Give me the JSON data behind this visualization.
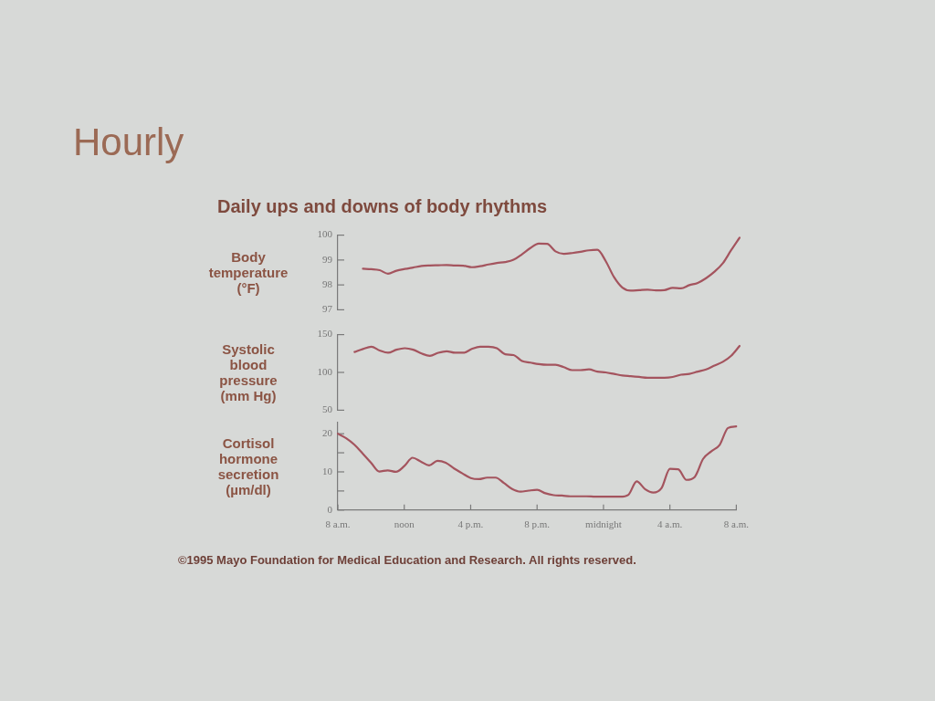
{
  "chart_data": [
    {
      "type": "line",
      "title": "Hourly",
      "subtitle": "Daily ups and downs of body rhythms",
      "ylabel": "Body temperature (°F)",
      "categories": [
        null,
        null,
        null,
        null,
        null,
        null,
        null,
        null,
        null,
        null,
        null,
        null,
        null,
        null,
        null,
        null,
        null,
        null,
        null,
        null,
        null,
        null,
        null,
        null,
        null,
        null,
        null,
        null,
        null,
        null,
        null,
        null,
        null,
        null,
        null,
        null,
        null,
        null,
        null,
        null,
        null,
        null,
        null,
        null,
        null,
        null,
        null,
        null,
        null
      ],
      "ylim": [
        97,
        100
      ],
      "yticks": [
        97,
        98,
        99,
        100
      ],
      "tick_labels": "y",
      "color": "#a4545e",
      "values": [
        null,
        null,
        null,
        98.65,
        98.63,
        98.59,
        98.45,
        98.57,
        98.64,
        98.7,
        98.76,
        98.78,
        98.79,
        98.8,
        98.78,
        98.77,
        98.71,
        98.75,
        98.82,
        98.88,
        98.92,
        99.01,
        99.23,
        99.48,
        99.66,
        99.65,
        99.35,
        99.25,
        99.28,
        99.33,
        99.39,
        99.41,
        98.96,
        98.31,
        97.89,
        97.77,
        97.79,
        97.81,
        97.78,
        97.79,
        97.88,
        97.86,
        97.99,
        98.08,
        98.27,
        98.53,
        98.87,
        99.4,
        99.9
      ]
    },
    {
      "type": "line",
      "ylabel": "Systolic blood pressure (mm Hg)",
      "categories": [
        null,
        null,
        null,
        null,
        null,
        null,
        null,
        null,
        null,
        null,
        null,
        null,
        null,
        null,
        null,
        null,
        null,
        null,
        null,
        null,
        null,
        null,
        null,
        null,
        null,
        null,
        null,
        null,
        null,
        null,
        null,
        null,
        null,
        null,
        null,
        null,
        null,
        null,
        null,
        null,
        null,
        null,
        null,
        null,
        null,
        null,
        null,
        null,
        null
      ],
      "ylim": [
        50,
        150
      ],
      "yticks": [
        50,
        100,
        150
      ],
      "tick_labels": "y",
      "color": "#a4545e",
      "values": [
        null,
        null,
        127,
        131,
        134,
        129,
        126,
        130,
        132,
        130,
        125,
        122,
        126,
        128,
        126,
        126,
        131,
        134,
        134,
        132,
        124,
        123,
        115,
        113,
        111,
        110,
        110,
        107,
        103,
        103,
        104,
        101,
        100,
        98,
        96,
        95,
        94,
        93,
        93,
        93,
        94,
        97,
        98,
        101,
        104,
        109,
        114,
        122,
        135
      ]
    },
    {
      "type": "line",
      "ylabel": "Cortisol hormone secretion (µm/dl)",
      "categories": [
        "8 a.m.",
        null,
        null,
        null,
        null,
        null,
        null,
        null,
        "noon",
        null,
        null,
        null,
        null,
        null,
        null,
        null,
        "4 p.m.",
        null,
        null,
        null,
        null,
        null,
        null,
        null,
        "8 p.m.",
        null,
        null,
        null,
        null,
        null,
        null,
        null,
        "midnight",
        null,
        null,
        null,
        null,
        null,
        null,
        null,
        "4 a.m.",
        null,
        null,
        null,
        null,
        null,
        null,
        null,
        "8 a.m."
      ],
      "ylim": [
        0,
        23
      ],
      "yticks": [
        0,
        {
          "value": 5,
          "label": null
        },
        10,
        {
          "value": 15,
          "label": null
        },
        20
      ],
      "color": "#a4545e",
      "values": [
        20,
        18.8,
        17.1,
        14.8,
        12.4,
        10.1,
        10.4,
        10.0,
        11.5,
        13.7,
        12.7,
        11.7,
        12.9,
        12.4,
        10.9,
        9.6,
        8.4,
        8.1,
        8.5,
        8.5,
        7.1,
        5.5,
        4.8,
        5.1,
        5.3,
        4.4,
        3.9,
        3.8,
        3.6,
        3.6,
        3.6,
        3.5,
        3.5,
        3.5,
        3.5,
        4.0,
        7.5,
        5.5,
        4.6,
        5.8,
        10.8,
        10.7,
        7.9,
        8.7,
        13.4,
        15.4,
        17.1,
        21.5,
        21.9
      ],
      "annotations": [
        "©1995 Mayo Foundation for Medical Education and Research. All rights reserved."
      ]
    }
  ]
}
